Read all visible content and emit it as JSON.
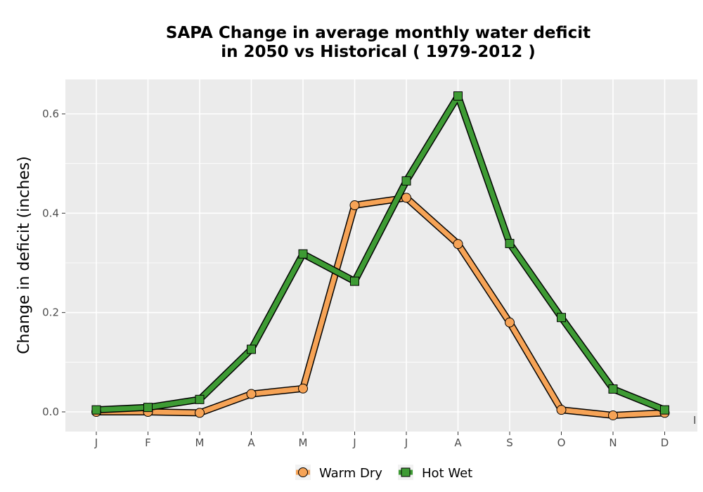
{
  "chart_data": {
    "type": "line",
    "title_line1": "SAPA  Change in average monthly water deficit",
    "title_line2": "in 2050 vs Historical ( 1979-2012 )",
    "xlabel": "",
    "ylabel": "Change in deficit (inches)",
    "categories": [
      "J",
      "F",
      "M",
      "A",
      "M",
      "J",
      "J",
      "A",
      "S",
      "O",
      "N",
      "D"
    ],
    "yticks": [
      0.0,
      0.2,
      0.4,
      0.6
    ],
    "ytick_labels": [
      "0.0",
      "0.2",
      "0.4",
      "0.6"
    ],
    "ylim": [
      -0.04,
      0.67
    ],
    "grid": true,
    "legend_position": "bottom",
    "stray_label": "I",
    "series": [
      {
        "name": "Warm Dry",
        "marker": "circle",
        "color": "#f6a356",
        "values": [
          0.0,
          0.0,
          -0.002,
          0.036,
          0.047,
          0.416,
          0.431,
          0.338,
          0.18,
          0.004,
          -0.007,
          -0.002
        ]
      },
      {
        "name": "Hot Wet",
        "marker": "square",
        "color": "#3e9b34",
        "values": [
          0.004,
          0.009,
          0.025,
          0.126,
          0.318,
          0.263,
          0.465,
          0.636,
          0.339,
          0.19,
          0.046,
          0.004
        ]
      }
    ]
  }
}
